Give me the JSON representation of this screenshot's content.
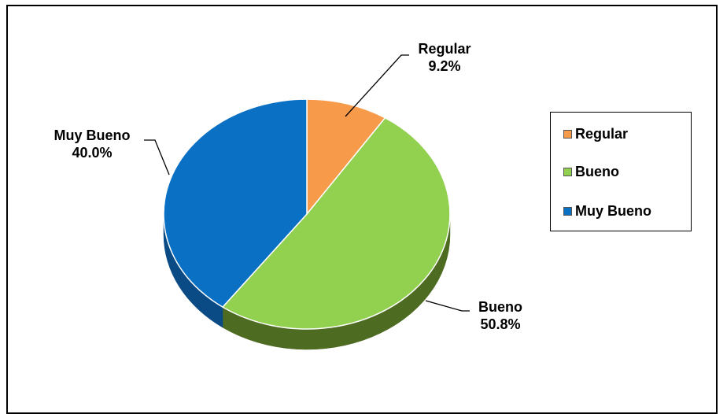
{
  "chart_data": {
    "type": "pie",
    "title": "",
    "categories": [
      "Regular",
      "Bueno",
      "Muy Bueno"
    ],
    "values": [
      9.2,
      50.8,
      40.0
    ],
    "data_labels": [
      {
        "name": "Regular",
        "value": "9.2%"
      },
      {
        "name": "Bueno",
        "value": "50.8%"
      },
      {
        "name": "Muy Bueno",
        "value": "40.0%"
      }
    ],
    "colors": [
      "#F79A4A",
      "#92D050",
      "#0A70C4"
    ],
    "side_colors": [
      "#B8651F",
      "#4E6B22",
      "#0A4A85"
    ],
    "legend": {
      "position": "right",
      "items": [
        {
          "label": "Regular",
          "color": "#F79A4A"
        },
        {
          "label": "Bueno",
          "color": "#92D050"
        },
        {
          "label": "Muy Bueno",
          "color": "#0A70C4"
        }
      ]
    }
  }
}
